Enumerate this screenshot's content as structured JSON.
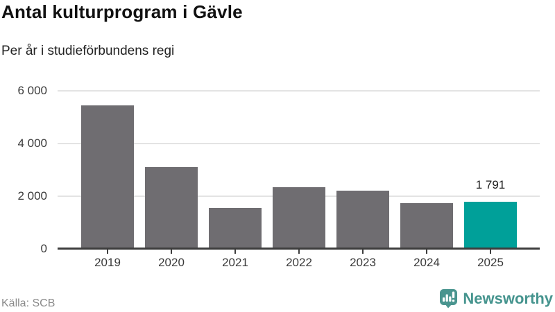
{
  "header": {
    "title": "Antal kulturprogram i Gävle",
    "subtitle": "Per år i studieförbundens regi"
  },
  "chart_data": {
    "type": "bar",
    "title": "Antal kulturprogram i Gävle",
    "subtitle": "Per år i studieförbundens regi",
    "categories": [
      "2019",
      "2020",
      "2021",
      "2022",
      "2023",
      "2024",
      "2025"
    ],
    "values": [
      5450,
      3100,
      1550,
      2350,
      2200,
      1750,
      1791
    ],
    "ylim": [
      0,
      6000
    ],
    "yticks": [
      0,
      2000,
      4000,
      6000
    ],
    "ytick_labels": [
      "0",
      "2 000",
      "4 000",
      "6 000"
    ],
    "grid": true,
    "legend_position": "none",
    "bar_color": "#6F6D71",
    "highlight_index": 6,
    "highlight_color": "#00A099",
    "annotations": [
      {
        "index": 6,
        "text": "1 791"
      }
    ]
  },
  "footer": {
    "source": "Källa: SCB",
    "brand": "Newsworthy",
    "brand_color": "#45948E"
  },
  "colors": {
    "grid": "#E3E3E3",
    "axis": "#3D3D3D",
    "tick_label": "#3A3A3A",
    "title": "#111111",
    "source": "#8A8A8A"
  }
}
